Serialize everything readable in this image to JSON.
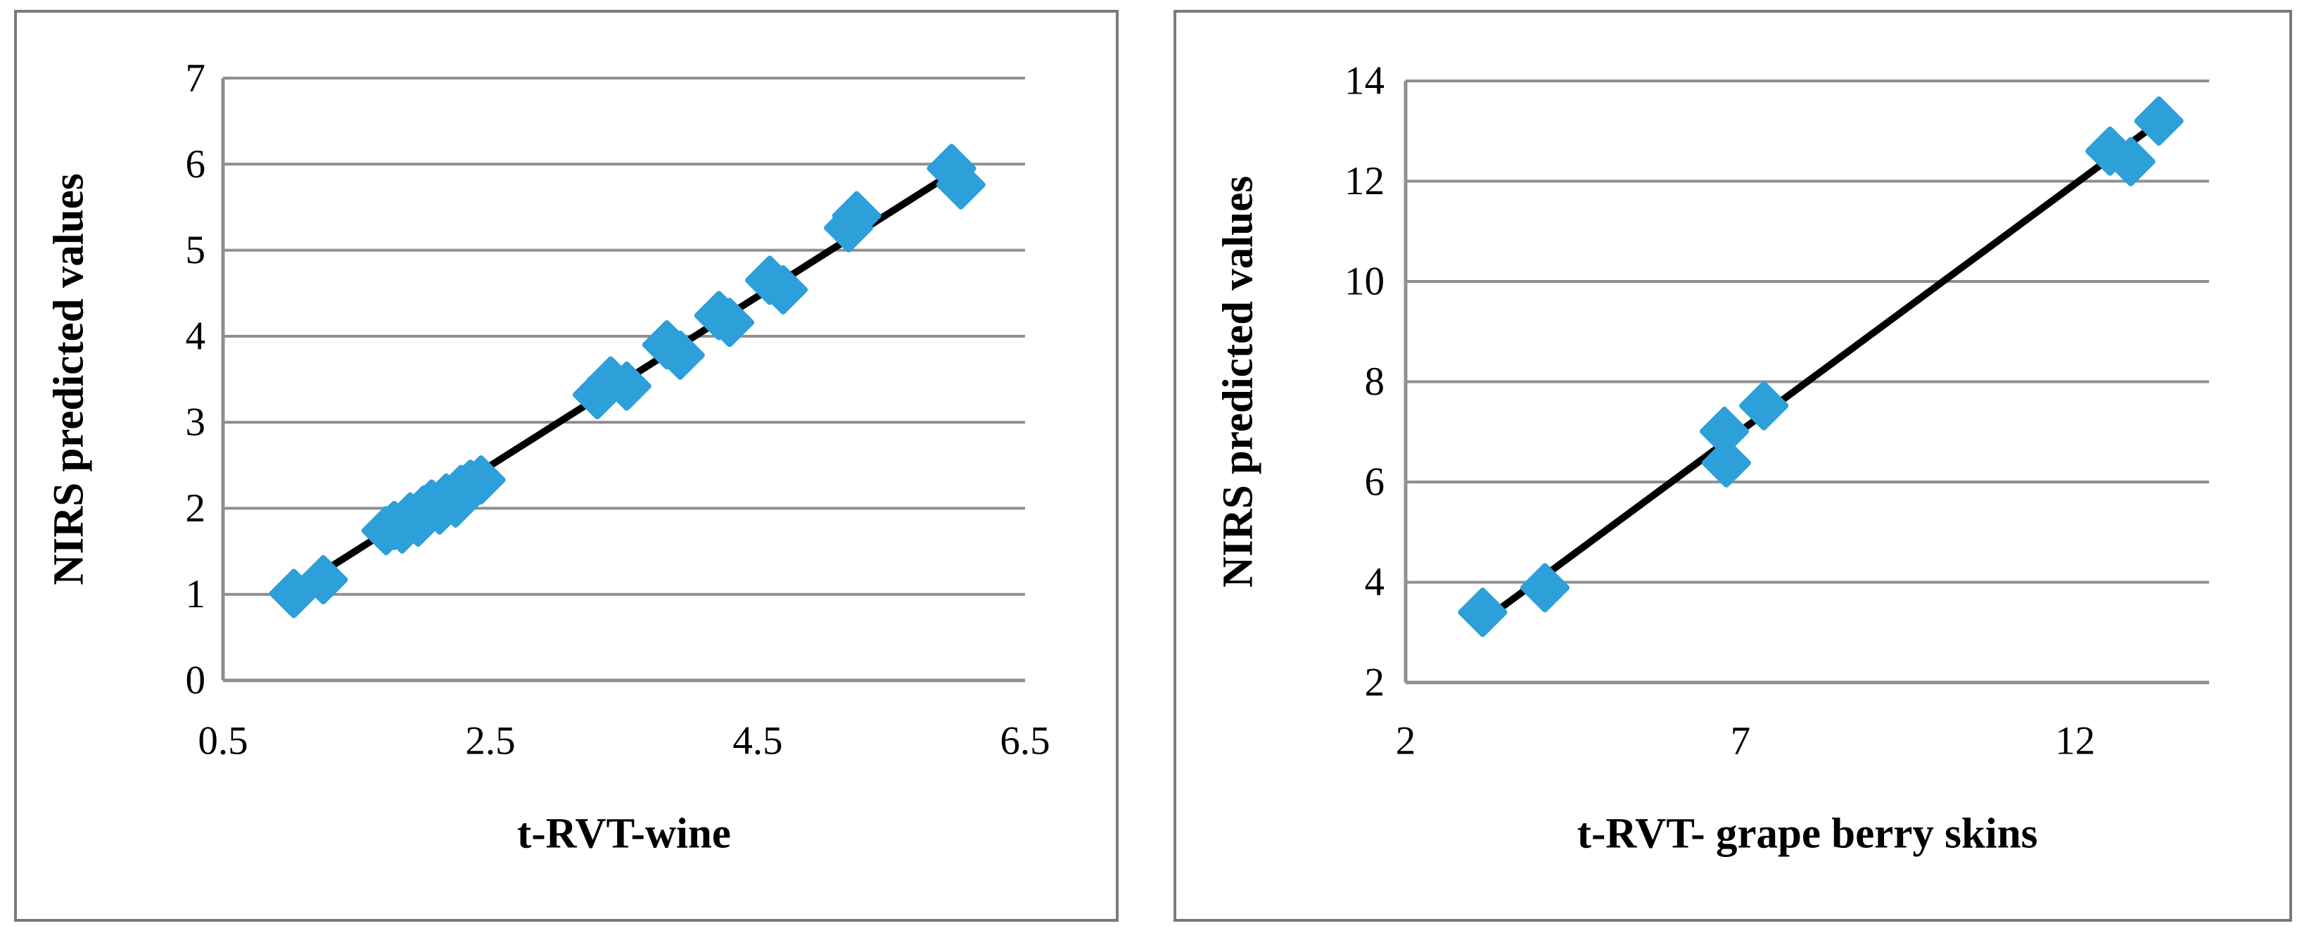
{
  "colors": {
    "marker": "#2d9fd9",
    "trend_line": "#000000",
    "gridline": "#8f8f8f",
    "axis_line": "#8f8f8f",
    "panel_border": "#7a7a7a",
    "background": "#ffffff",
    "text": "#000000"
  },
  "chart_data": [
    {
      "type": "scatter",
      "title": "",
      "xlabel": "t-RVT-wine",
      "ylabel": "NIRS predicted values",
      "x_min": 0.5,
      "x_max": 6.5,
      "y_min": 0,
      "y_max": 7,
      "x_ticks": [
        0.5,
        2.5,
        4.5,
        6.5
      ],
      "y_ticks": [
        0,
        1,
        2,
        3,
        4,
        5,
        6,
        7
      ],
      "grid": "horizontal",
      "legend": "none",
      "marker_shape": "diamond",
      "points": [
        [
          1.03,
          1.01
        ],
        [
          1.25,
          1.17
        ],
        [
          1.72,
          1.74
        ],
        [
          1.78,
          1.8
        ],
        [
          1.84,
          1.76
        ],
        [
          1.9,
          1.9
        ],
        [
          1.96,
          1.84
        ],
        [
          2.0,
          1.98
        ],
        [
          2.06,
          2.05
        ],
        [
          2.12,
          1.98
        ],
        [
          2.17,
          2.12
        ],
        [
          2.24,
          2.06
        ],
        [
          2.28,
          2.22
        ],
        [
          2.35,
          2.28
        ],
        [
          2.43,
          2.33
        ],
        [
          3.3,
          3.32
        ],
        [
          3.4,
          3.48
        ],
        [
          3.52,
          3.42
        ],
        [
          3.82,
          3.9
        ],
        [
          3.92,
          3.78
        ],
        [
          4.21,
          4.24
        ],
        [
          4.29,
          4.16
        ],
        [
          4.59,
          4.65
        ],
        [
          4.69,
          4.54
        ],
        [
          5.18,
          5.26
        ],
        [
          5.24,
          5.4
        ],
        [
          5.95,
          5.95
        ],
        [
          6.02,
          5.76
        ]
      ],
      "trend": [
        [
          1.03,
          1.05
        ],
        [
          5.98,
          5.92
        ]
      ]
    },
    {
      "type": "scatter",
      "title": "",
      "xlabel": "t-RVT- grape berry skins",
      "ylabel": "NIRS predicted values",
      "x_min": 2,
      "x_max": 14,
      "y_min": 2,
      "y_max": 14,
      "x_ticks": [
        2,
        7,
        12
      ],
      "y_ticks": [
        2,
        4,
        6,
        8,
        10,
        12,
        14
      ],
      "grid": "horizontal",
      "legend": "none",
      "marker_shape": "diamond",
      "points": [
        [
          3.15,
          3.4
        ],
        [
          4.08,
          3.89
        ],
        [
          6.76,
          7.01
        ],
        [
          6.79,
          6.38
        ],
        [
          7.35,
          7.52
        ],
        [
          12.52,
          12.6
        ],
        [
          12.83,
          12.39
        ],
        [
          13.25,
          13.2
        ]
      ],
      "trend": [
        [
          3.14,
          3.21
        ],
        [
          13.25,
          13.18
        ]
      ]
    }
  ]
}
